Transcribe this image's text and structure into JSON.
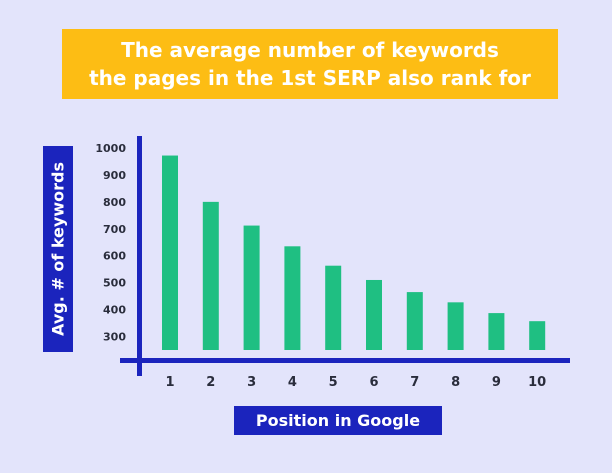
{
  "chart_data": {
    "type": "bar",
    "title": "The average number of keywords the pages in the 1st SERP also rank for",
    "title_lines": [
      "The average number of keywords",
      "the pages in the 1st SERP also rank for"
    ],
    "xlabel": "Position in Google",
    "ylabel": "Avg. # of keywords",
    "categories": [
      "1",
      "2",
      "3",
      "4",
      "5",
      "6",
      "7",
      "8",
      "9",
      "10"
    ],
    "values": [
      972,
      800,
      712,
      635,
      563,
      510,
      465,
      427,
      387,
      357
    ],
    "yticks": [
      300,
      400,
      500,
      600,
      700,
      800,
      900,
      1000
    ],
    "ylim": [
      250,
      1000
    ],
    "grid": false,
    "bar_color": "#1fbf82",
    "axis_color": "#1b24bd",
    "title_bg": "#fdbd14"
  }
}
